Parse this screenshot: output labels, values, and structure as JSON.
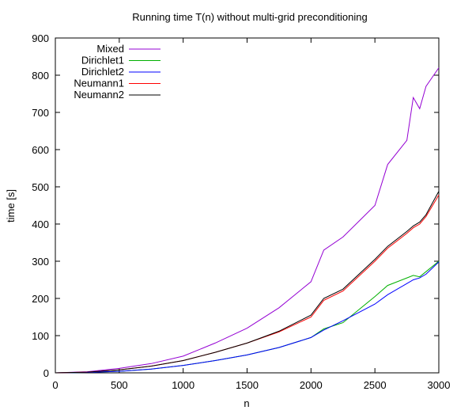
{
  "chart_data": {
    "type": "line",
    "title": "Running time T(n) without multi-grid preconditioning",
    "xlabel": "n",
    "ylabel": "time [s]",
    "xlim": [
      0,
      3000
    ],
    "ylim": [
      0,
      900
    ],
    "x_ticks": [
      0,
      500,
      1000,
      1500,
      2000,
      2500,
      3000
    ],
    "y_ticks": [
      0,
      100,
      200,
      300,
      400,
      500,
      600,
      700,
      800,
      900
    ],
    "grid": false,
    "legend_position": "top-left",
    "x": [
      0,
      250,
      500,
      750,
      1000,
      1250,
      1500,
      1750,
      2000,
      2100,
      2250,
      2500,
      2600,
      2750,
      2800,
      2850,
      2900,
      3000
    ],
    "series": [
      {
        "name": "Mixed",
        "color": "#9400d3",
        "values": [
          0,
          3,
          12,
          25,
          45,
          80,
          120,
          175,
          245,
          330,
          365,
          450,
          560,
          625,
          740,
          710,
          770,
          820
        ]
      },
      {
        "name": "Dirichlet1",
        "color": "#00b000",
        "values": [
          0,
          1,
          4,
          10,
          20,
          33,
          48,
          68,
          95,
          118,
          135,
          205,
          235,
          255,
          262,
          258,
          272,
          300
        ]
      },
      {
        "name": "Dirichlet2",
        "color": "#0000ff",
        "values": [
          0,
          1,
          4,
          10,
          20,
          33,
          48,
          68,
          95,
          115,
          140,
          185,
          210,
          240,
          250,
          255,
          265,
          298
        ]
      },
      {
        "name": "Neumann1",
        "color": "#ff0000",
        "values": [
          0,
          2,
          8,
          18,
          33,
          55,
          80,
          110,
          150,
          195,
          220,
          300,
          335,
          375,
          390,
          400,
          420,
          478
        ]
      },
      {
        "name": "Neumann2",
        "color": "#000000",
        "values": [
          0,
          2,
          8,
          18,
          33,
          55,
          80,
          112,
          155,
          200,
          225,
          305,
          340,
          380,
          395,
          405,
          425,
          488
        ]
      }
    ]
  }
}
